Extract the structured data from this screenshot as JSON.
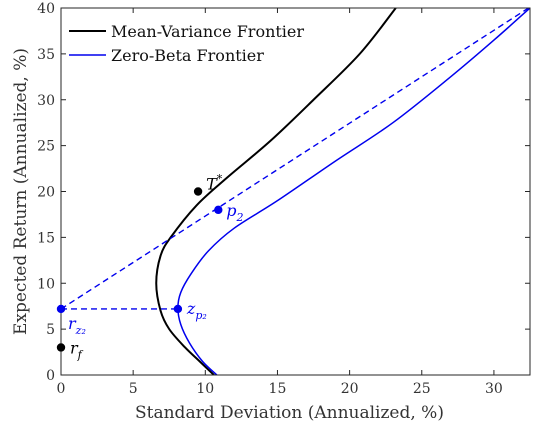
{
  "chart_data": {
    "type": "line",
    "title": "",
    "xlabel": "Standard Deviation (Annualized, %)",
    "ylabel": "Expected Return (Annualized, %)",
    "xlim": [
      0,
      32.5
    ],
    "ylim": [
      0,
      40
    ],
    "xticks": [
      0,
      5,
      10,
      15,
      20,
      25,
      30
    ],
    "yticks": [
      0,
      5,
      10,
      15,
      20,
      25,
      30,
      35,
      40
    ],
    "grid": false,
    "legend_position": "top-left",
    "colors": {
      "black": "#000000",
      "blue": "#0000ee",
      "axis": "#262626"
    },
    "series": [
      {
        "name": "Mean-Variance Frontier",
        "color": "#000000",
        "style": "solid",
        "x": [
          10.6,
          9.6,
          8.6,
          7.5,
          6.9,
          6.6,
          6.9,
          7.6,
          9.4,
          11.5,
          14.5,
          17.5,
          20.7,
          23.2
        ],
        "y": [
          0,
          1.5,
          3,
          5,
          7,
          10,
          13,
          15,
          18.5,
          21.5,
          25.5,
          30,
          35,
          40
        ]
      },
      {
        "name": "Zero-Beta Frontier",
        "color": "#0000ee",
        "style": "solid",
        "x": [
          10.8,
          9.8,
          8.9,
          8.3,
          8.1,
          8.3,
          9.0,
          10.2,
          12.0,
          15.0,
          19.0,
          23.0,
          27.0,
          30.0,
          32.5
        ],
        "y": [
          0,
          1.5,
          3.5,
          5.5,
          7.3,
          9.0,
          11.0,
          13.5,
          16.0,
          19.0,
          23.3,
          27.5,
          32.5,
          36.5,
          40
        ]
      },
      {
        "color": "#0000ee",
        "style": "dashed",
        "x": [
          0,
          32.4
        ],
        "y": [
          7.2,
          40
        ]
      },
      {
        "color": "#0000ee",
        "style": "dashed",
        "x": [
          0,
          8.1
        ],
        "y": [
          7.2,
          7.2
        ]
      }
    ],
    "points": [
      {
        "label": "r",
        "sub": "f",
        "x": 0,
        "y": 3,
        "color": "#000000"
      },
      {
        "label": "r",
        "sub": "z₂",
        "x": 0,
        "y": 7.2,
        "color": "#0000ee"
      },
      {
        "label": "z",
        "sub": "p₂",
        "x": 8.1,
        "y": 7.2,
        "color": "#0000ee"
      },
      {
        "label": "T*",
        "sub": "",
        "x": 9.5,
        "y": 20,
        "color": "#000000"
      },
      {
        "label": "p",
        "sub": "2",
        "x": 10.9,
        "y": 18,
        "color": "#0000ee"
      }
    ]
  }
}
